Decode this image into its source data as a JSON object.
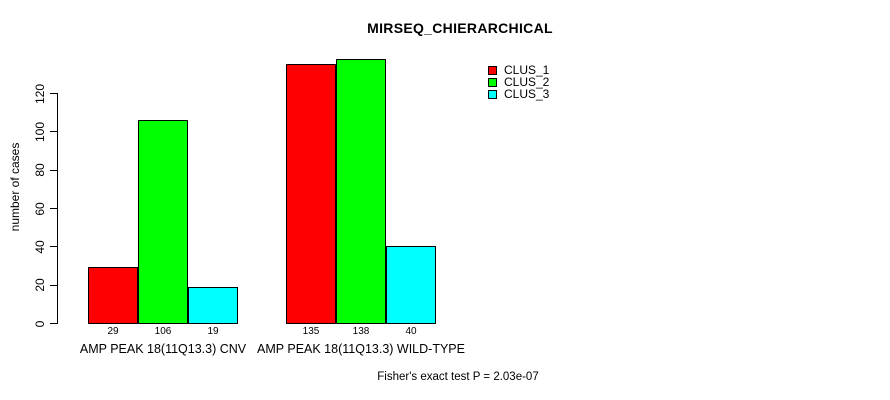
{
  "chart_data": {
    "type": "bar",
    "title": "MIRSEQ_CHIERARCHICAL",
    "ylabel": "number of cases",
    "xlabel": "",
    "ylim": [
      0,
      120
    ],
    "yticks": [
      0,
      20,
      40,
      60,
      80,
      100,
      120
    ],
    "grid": false,
    "legend_position": "top-right-inside",
    "series_names": [
      "CLUS_1",
      "CLUS_2",
      "CLUS_3"
    ],
    "colors": [
      "#FF0000",
      "#00FF00",
      "#00FFFF"
    ],
    "categories": [
      "AMP PEAK 18(11Q13.3) CNV",
      "AMP PEAK 18(11Q13.3) WILD-TYPE"
    ],
    "series": [
      {
        "name": "CLUS_1",
        "color": "#FF0000",
        "values": [
          29,
          135
        ]
      },
      {
        "name": "CLUS_2",
        "color": "#00FF00",
        "values": [
          106,
          138
        ]
      },
      {
        "name": "CLUS_3",
        "color": "#00FFFF",
        "values": [
          19,
          40
        ]
      }
    ],
    "groups": [
      {
        "label": "AMP PEAK 18(11Q13.3) CNV",
        "values": [
          29,
          106,
          19
        ]
      },
      {
        "label": "AMP PEAK 18(11Q13.3) WILD-TYPE",
        "values": [
          135,
          138,
          40
        ]
      }
    ],
    "bar_value_labels": [
      [
        29,
        106,
        19
      ],
      [
        135,
        138,
        40
      ]
    ],
    "footnote": "Fisher's exact test P = 2.03e-07",
    "axis_color": "#000000",
    "background_color": "#FFFFFF"
  },
  "legend": {
    "items": [
      {
        "label": "CLUS_1",
        "color": "#FF0000"
      },
      {
        "label": "CLUS_2",
        "color": "#00FF00"
      },
      {
        "label": "CLUS_3",
        "color": "#00FFFF"
      }
    ]
  }
}
